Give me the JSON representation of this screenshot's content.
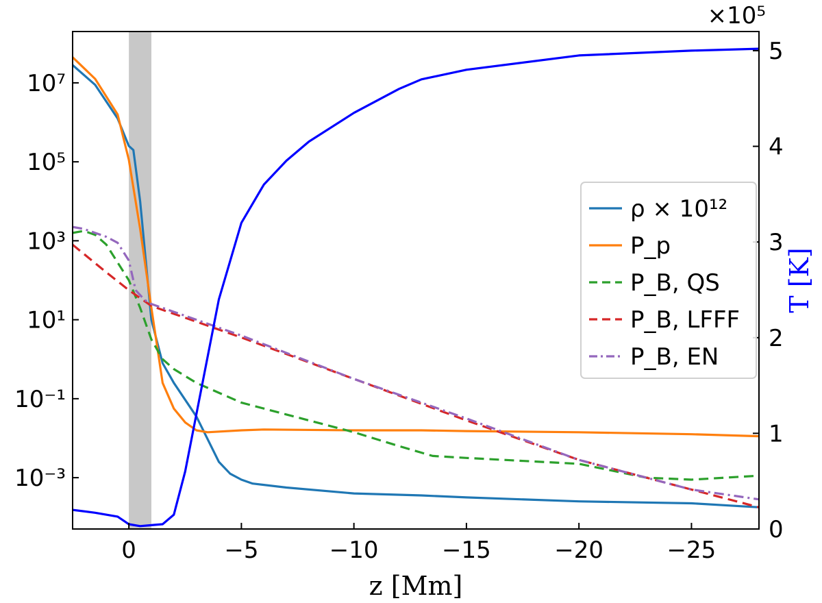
{
  "chart_data": {
    "type": "line",
    "xlabel": "z [Mm]",
    "ylabel_right": "T [K]",
    "right_axis_multiplier": "×10⁵",
    "xlim": [
      2.5,
      -28
    ],
    "xticks": [
      0,
      -5,
      -10,
      -15,
      -20,
      -25
    ],
    "xtick_labels": [
      "0",
      "−5",
      "−10",
      "−15",
      "−20",
      "−25"
    ],
    "ylim_left_log10": [
      -4.3,
      8.3
    ],
    "y_scale_left": "log",
    "yticks_left_log10": [
      7,
      5,
      3,
      1,
      -1,
      -3
    ],
    "ytick_labels_left": [
      "10⁷",
      "10⁵",
      "10³",
      "10¹",
      "10⁻¹",
      "10⁻³"
    ],
    "ylim_right": [
      0,
      5.2
    ],
    "yticks_right": [
      0,
      1,
      2,
      3,
      4,
      5
    ],
    "ytick_labels_right": [
      "0",
      "1",
      "2",
      "3",
      "4",
      "5"
    ],
    "shaded_band": {
      "x_from": 0,
      "x_to": -1,
      "color": "#c8c8c8"
    },
    "grid": false,
    "legend_position": "center-right",
    "series": [
      {
        "name": "ρ × 10¹²",
        "axis": "left",
        "color": "#1f77b4",
        "dash": "solid",
        "x": [
          2.5,
          1.5,
          0.5,
          0,
          -0.2,
          -0.5,
          -1,
          -1.5,
          -2,
          -3,
          -4,
          -4.5,
          -5,
          -5.5,
          -7,
          -10,
          -13,
          -15,
          -20,
          -25,
          -28
        ],
        "log10y": [
          7.45,
          6.95,
          6.1,
          5.4,
          5.3,
          4.0,
          1.0,
          -0.1,
          -0.6,
          -1.45,
          -2.6,
          -2.9,
          -3.05,
          -3.15,
          -3.25,
          -3.4,
          -3.45,
          -3.5,
          -3.6,
          -3.65,
          -3.75
        ]
      },
      {
        "name": "P_p",
        "axis": "left",
        "color": "#ff7f0e",
        "dash": "solid",
        "x": [
          2.5,
          1.5,
          0.5,
          0,
          -0.5,
          -1,
          -1.5,
          -2,
          -2.5,
          -3,
          -3.5,
          -5,
          -6,
          -10,
          -13,
          -15,
          -20,
          -25,
          -28
        ],
        "log10y": [
          7.65,
          7.1,
          6.2,
          5.05,
          3.3,
          1.3,
          -0.6,
          -1.25,
          -1.6,
          -1.8,
          -1.85,
          -1.8,
          -1.78,
          -1.8,
          -1.8,
          -1.82,
          -1.85,
          -1.9,
          -1.95
        ]
      },
      {
        "name": "P_B, QS",
        "axis": "left",
        "color": "#2ca02c",
        "dash": "dashed",
        "x": [
          2.5,
          2,
          1.5,
          1,
          0,
          -0.5,
          -1,
          -1.5,
          -2,
          -3,
          -5,
          -7,
          -10,
          -12,
          -13.5,
          -15,
          -20,
          -23,
          -25,
          -28
        ],
        "log10y": [
          3.2,
          3.25,
          3.15,
          2.9,
          2.0,
          1.3,
          0.5,
          0.0,
          -0.25,
          -0.6,
          -1.1,
          -1.4,
          -1.85,
          -2.2,
          -2.45,
          -2.5,
          -2.65,
          -3.0,
          -3.05,
          -2.95
        ]
      },
      {
        "name": "P_B, LFFF",
        "axis": "left",
        "color": "#d62728",
        "dash": "dashed",
        "x": [
          2.5,
          1,
          0,
          -1,
          -5,
          -10,
          -15,
          -20,
          -25,
          -28
        ],
        "log10y": [
          2.9,
          2.2,
          1.75,
          1.35,
          0.55,
          -0.5,
          -1.55,
          -2.55,
          -3.3,
          -3.75
        ]
      },
      {
        "name": "P_B, EN",
        "axis": "left",
        "color": "#9467bd",
        "dash": "dashdot",
        "x": [
          2.5,
          2,
          1.5,
          1,
          0.5,
          0,
          -0.3,
          -0.7,
          -1,
          -5,
          -10,
          -15,
          -20,
          -25,
          -28
        ],
        "log10y": [
          3.35,
          3.3,
          3.2,
          3.1,
          2.95,
          2.5,
          1.75,
          1.5,
          1.4,
          0.6,
          -0.5,
          -1.5,
          -2.55,
          -3.3,
          -3.55
        ]
      },
      {
        "name": "T",
        "axis": "right",
        "color": "#0000ff",
        "dash": "solid",
        "x": [
          2.5,
          1.5,
          0.5,
          0,
          -0.5,
          -1,
          -1.5,
          -2,
          -2.5,
          -3,
          -3.5,
          -4,
          -5,
          -6,
          -7,
          -8,
          -10,
          -12,
          -13,
          -15,
          -20,
          -25,
          -28
        ],
        "y": [
          0.2,
          0.17,
          0.13,
          0.05,
          0.03,
          0.04,
          0.05,
          0.15,
          0.6,
          1.2,
          1.8,
          2.4,
          3.2,
          3.6,
          3.85,
          4.05,
          4.35,
          4.6,
          4.7,
          4.8,
          4.95,
          5.0,
          5.02
        ]
      }
    ]
  }
}
